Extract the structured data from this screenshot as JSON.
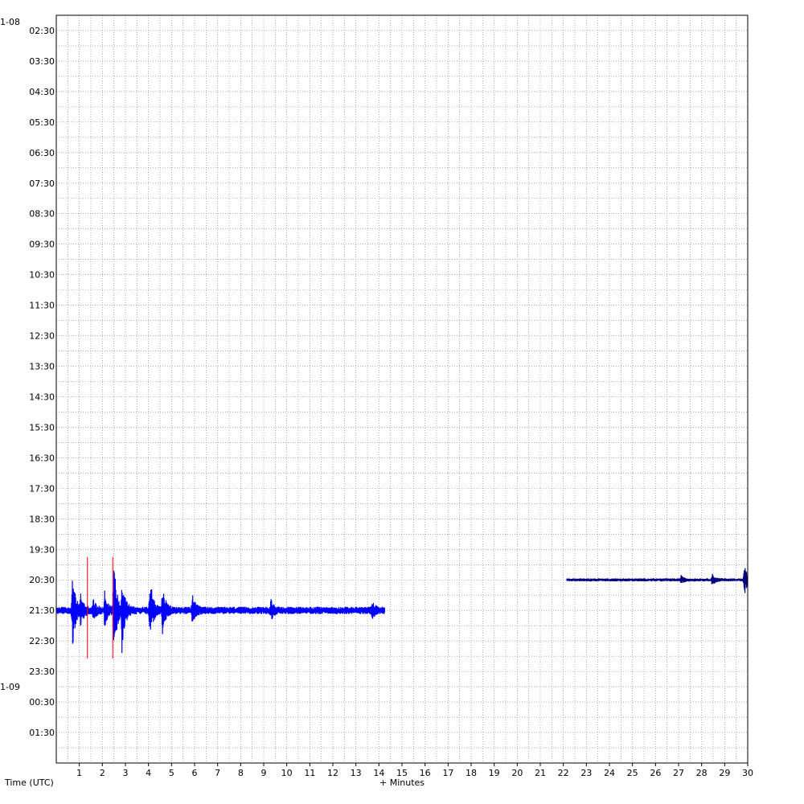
{
  "chart_data": {
    "type": "line",
    "title": "",
    "xlabel": "+ Minutes",
    "ylabel": "Time (UTC)",
    "xlim": [
      0,
      30
    ],
    "x_ticks": [
      "1",
      "2",
      "3",
      "4",
      "5",
      "6",
      "7",
      "8",
      "9",
      "10",
      "11",
      "12",
      "13",
      "14",
      "15",
      "16",
      "17",
      "18",
      "19",
      "20",
      "21",
      "22",
      "23",
      "24",
      "25",
      "26",
      "27",
      "28",
      "29",
      "30"
    ],
    "row_labels": [
      "02:30",
      "03:30",
      "04:30",
      "05:30",
      "06:30",
      "07:30",
      "08:30",
      "09:30",
      "10:30",
      "11:30",
      "12:30",
      "13:30",
      "14:30",
      "15:30",
      "16:30",
      "17:30",
      "18:30",
      "19:30",
      "20:30",
      "21:30",
      "22:30",
      "23:30",
      "00:30",
      "01:30"
    ],
    "date_labels": [
      {
        "text": "1-08",
        "row": 0
      },
      {
        "text": "1-09",
        "row": 22
      }
    ],
    "grid": true,
    "colors": {
      "trace_a": "#0000ff",
      "trace_b": "#000080",
      "marker": "#ff0000",
      "grid": "#808080"
    },
    "series": [
      {
        "row": "21:30",
        "color": "#0000ff",
        "x_start": 0.0,
        "x_end": 14.25,
        "baseline_amp": 0.12,
        "bursts": [
          {
            "x": 0.7,
            "amp": 1.2
          },
          {
            "x": 1.05,
            "amp": 0.45
          },
          {
            "x": 1.6,
            "amp": 0.3
          },
          {
            "x": 2.1,
            "amp": 0.6
          },
          {
            "x": 2.5,
            "amp": 1.6
          },
          {
            "x": 2.85,
            "amp": 1.2
          },
          {
            "x": 4.05,
            "amp": 1.25
          },
          {
            "x": 4.6,
            "amp": 0.8
          },
          {
            "x": 5.9,
            "amp": 0.45
          },
          {
            "x": 9.3,
            "amp": 0.3
          },
          {
            "x": 13.7,
            "amp": 0.22
          }
        ]
      },
      {
        "row": "20:30",
        "color": "#000080",
        "x_start": 22.15,
        "x_end": 30.0,
        "baseline_amp": 0.05,
        "bursts": [
          {
            "x": 27.1,
            "amp": 0.12
          },
          {
            "x": 28.45,
            "amp": 0.18
          },
          {
            "x": 29.85,
            "amp": 0.5
          }
        ]
      }
    ],
    "markers": [
      {
        "x": 1.35,
        "row": "21:30",
        "color": "#ff0000",
        "extent": 1.75
      },
      {
        "x": 2.45,
        "row": "21:30",
        "color": "#ff0000",
        "extent": 1.75
      }
    ]
  }
}
